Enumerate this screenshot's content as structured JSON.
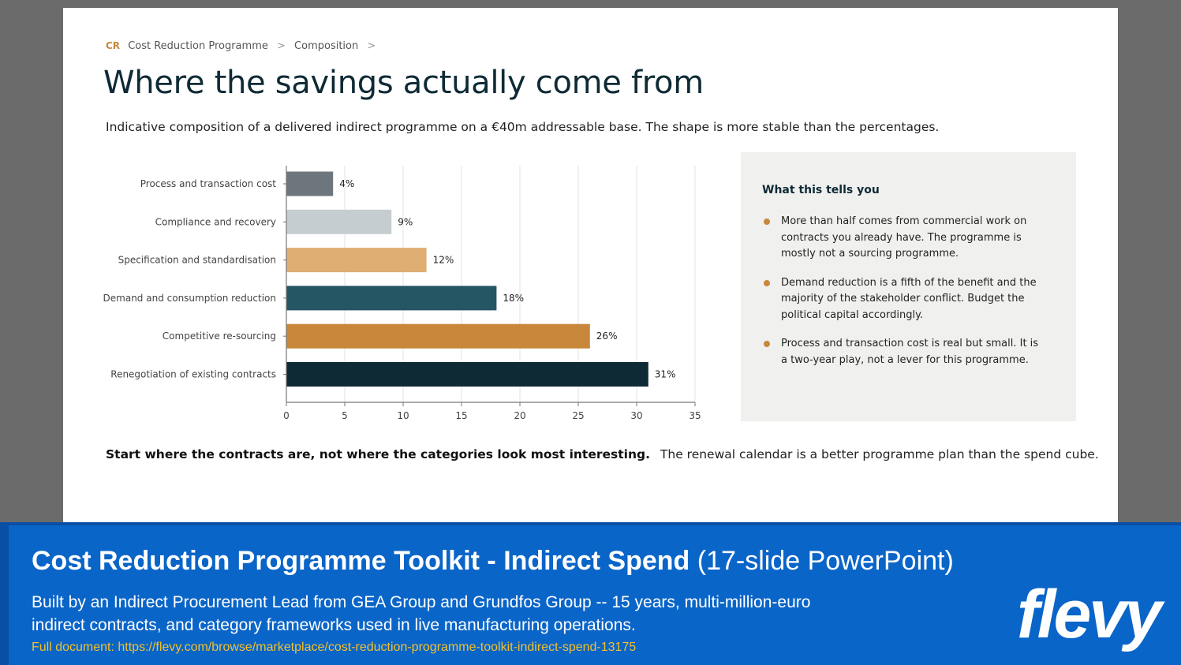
{
  "breadcrumb": {
    "tag": "CR",
    "items": [
      "Cost Reduction Programme",
      "Composition"
    ],
    "separator": ">"
  },
  "title": "Where the savings actually come from",
  "subtitle": "Indicative composition of a delivered indirect programme on a €40m addressable base. The shape is more stable than the percentages.",
  "chart_data": {
    "type": "bar",
    "orientation": "horizontal",
    "categories": [
      "Process and transaction cost",
      "Compliance and recovery",
      "Specification and standardisation",
      "Demand and consumption reduction",
      "Competitive re-sourcing",
      "Renegotiation of existing contracts"
    ],
    "values": [
      4,
      9,
      12,
      18,
      26,
      31
    ],
    "data_labels": [
      "4%",
      "9%",
      "12%",
      "18%",
      "26%",
      "31%"
    ],
    "colors": [
      "#6d767c",
      "#c6cdd0",
      "#dfae72",
      "#245664",
      "#c8873a",
      "#0e2a35"
    ],
    "xlim": [
      0,
      35
    ],
    "xticks": [
      0,
      5,
      10,
      15,
      20,
      25,
      30,
      35
    ],
    "grid": "vertical"
  },
  "panel": {
    "title": "What this tells you",
    "bullets": [
      "More than half comes from commercial work on contracts you already have. The programme is mostly not a sourcing programme.",
      "Demand reduction is a fifth of the benefit and the majority of the stakeholder conflict. Budget the political capital accordingly.",
      "Process and transaction cost is real but small. It is a two-year play, not a lever for this programme."
    ]
  },
  "takeaway": {
    "bold": "Start where the contracts are, not where the categories look most interesting.",
    "rest": "The renewal calendar is a better programme plan than the spend cube."
  },
  "banner": {
    "title_bold": "Cost Reduction Programme Toolkit - Indirect Spend",
    "title_light": "(17-slide PowerPoint)",
    "description": "Built by an Indirect Procurement Lead from GEA Group and Grundfos Group -- 15 years, multi-million-euro indirect contracts, and category frameworks used in live manufacturing operations.",
    "link": "Full document: https://flevy.com/browse/marketplace/cost-reduction-programme-toolkit-indirect-spend-13175",
    "logo": "flevy"
  },
  "colors": {
    "accent": "#c8873a",
    "title": "#0e2a35",
    "banner": "#0a65c8",
    "link": "#f2c12e"
  }
}
